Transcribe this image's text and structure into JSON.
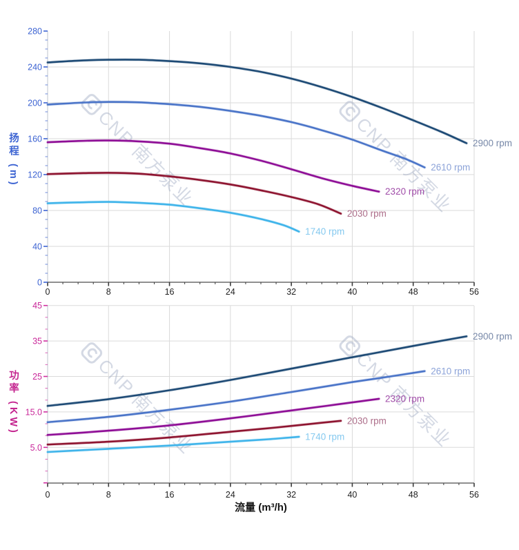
{
  "watermark": {
    "text": "CNP 南方泵业",
    "logo": "cnp-logo-icon"
  },
  "axes": {
    "flow_title": "流量 (m³/h)",
    "head_title": "扬程 (m)",
    "power_title": "功率 (KW)",
    "flow_tick_labels": [
      "0",
      "8",
      "16",
      "24",
      "32",
      "40",
      "48",
      "56"
    ],
    "head_tick_labels": [
      "0",
      "40",
      "80",
      "120",
      "160",
      "200",
      "240",
      "280"
    ],
    "power_tick_labels": [
      "5.0",
      "15.0",
      "25",
      "35",
      "45"
    ]
  },
  "colors": {
    "grid": "#dadada",
    "y_axis_line": "#c9cdd5",
    "x_axis_line": "#6a6a6a",
    "x_tick": "#3a3a3a",
    "x_tick_label": "#1f1f1f",
    "head_tick": "#3c63d2",
    "head_tick_label": "#3c63d2",
    "power_tick": "#d02fa0",
    "power_tick_label": "#c9289a",
    "watermark": "#9aa6bf"
  },
  "chart_data": [
    {
      "type": "line",
      "title": "",
      "xlabel": "流量 (m³/h)",
      "ylabel": "扬程 (m)",
      "xlim": [
        0,
        56
      ],
      "ylim": [
        0,
        280
      ],
      "x_major_step": 8,
      "x_minor_step": 2,
      "y_major_step": 40,
      "y_minor_step": 10,
      "grid": true,
      "legend_position": "curve-end-labels",
      "series": [
        {
          "name": "2900 rpm",
          "color": "#1d4a75",
          "label_color": "#7788a8",
          "points": [
            [
              0,
              245
            ],
            [
              4,
              247
            ],
            [
              8,
              248
            ],
            [
              12,
              248
            ],
            [
              16,
              246.5
            ],
            [
              20,
              244
            ],
            [
              24,
              240
            ],
            [
              28,
              234.5
            ],
            [
              32,
              227
            ],
            [
              36,
              217.5
            ],
            [
              40,
              206.5
            ],
            [
              44,
              194
            ],
            [
              48,
              180.5
            ],
            [
              52,
              166.5
            ],
            [
              55,
              155
            ]
          ]
        },
        {
          "name": "2610 rpm",
          "color": "#4a74c8",
          "label_color": "#8ca3d8",
          "points": [
            [
              0,
              198
            ],
            [
              4,
              200
            ],
            [
              8,
              201
            ],
            [
              12,
              200.5
            ],
            [
              16,
              198.5
            ],
            [
              20,
              195.5
            ],
            [
              24,
              191
            ],
            [
              28,
              185.5
            ],
            [
              32,
              178.5
            ],
            [
              36,
              169.5
            ],
            [
              40,
              159
            ],
            [
              44,
              146.5
            ],
            [
              47,
              137.5
            ],
            [
              49.5,
              128
            ]
          ]
        },
        {
          "name": "2320 rpm",
          "color": "#8e0e96",
          "label_color": "#a04ca8",
          "points": [
            [
              0,
              156
            ],
            [
              4,
              157.5
            ],
            [
              8,
              158
            ],
            [
              12,
              157
            ],
            [
              16,
              154.5
            ],
            [
              20,
              149.5
            ],
            [
              24,
              143.5
            ],
            [
              28,
              135.5
            ],
            [
              32,
              126
            ],
            [
              36,
              116
            ],
            [
              40,
              107.5
            ],
            [
              43.5,
              101
            ]
          ]
        },
        {
          "name": "2030 rpm",
          "color": "#8e1430",
          "label_color": "#ad6e8a",
          "points": [
            [
              0,
              120.5
            ],
            [
              4,
              121.5
            ],
            [
              8,
              122
            ],
            [
              12,
              121
            ],
            [
              16,
              118
            ],
            [
              20,
              114
            ],
            [
              24,
              109
            ],
            [
              28,
              102.5
            ],
            [
              32,
              95
            ],
            [
              35.5,
              87
            ],
            [
              38.5,
              76.5
            ]
          ]
        },
        {
          "name": "1740 rpm",
          "color": "#3fb4ea",
          "label_color": "#85c9ef",
          "points": [
            [
              0,
              88
            ],
            [
              4,
              89
            ],
            [
              8,
              89.5
            ],
            [
              12,
              88.5
            ],
            [
              16,
              86.5
            ],
            [
              20,
              82.5
            ],
            [
              24,
              77.5
            ],
            [
              28,
              70.5
            ],
            [
              31,
              63.5
            ],
            [
              33,
              56.5
            ]
          ]
        }
      ]
    },
    {
      "type": "line",
      "title": "",
      "xlabel": "流量 (m³/h)",
      "ylabel": "功率 (KW)",
      "xlim": [
        0,
        56
      ],
      "ylim": [
        -5,
        45
      ],
      "x_major_step": 8,
      "x_minor_step": 2,
      "y_major_step": 10,
      "y_minor_step": 3.3333,
      "grid": true,
      "legend_position": "curve-end-labels",
      "series": [
        {
          "name": "2900 rpm",
          "color": "#1d4a75",
          "label_color": "#7788a8",
          "points": [
            [
              0,
              16.7
            ],
            [
              8,
              18.6
            ],
            [
              16,
              21.1
            ],
            [
              24,
              24
            ],
            [
              32,
              27.2
            ],
            [
              40,
              30.4
            ],
            [
              48,
              33.6
            ],
            [
              55,
              36.3
            ]
          ]
        },
        {
          "name": "2610 rpm",
          "color": "#4a74c8",
          "label_color": "#8ca3d8",
          "points": [
            [
              0,
              12.1
            ],
            [
              8,
              13.6
            ],
            [
              16,
              15.6
            ],
            [
              24,
              17.9
            ],
            [
              32,
              20.6
            ],
            [
              40,
              23.4
            ],
            [
              45,
              25
            ],
            [
              49.5,
              26.5
            ]
          ]
        },
        {
          "name": "2320 rpm",
          "color": "#8e0e96",
          "label_color": "#a04ca8",
          "points": [
            [
              0,
              8.5
            ],
            [
              8,
              9.7
            ],
            [
              16,
              11.2
            ],
            [
              24,
              13.2
            ],
            [
              32,
              15.4
            ],
            [
              38,
              17.1
            ],
            [
              43.5,
              18.7
            ]
          ]
        },
        {
          "name": "2030 rpm",
          "color": "#8e1430",
          "label_color": "#ad6e8a",
          "points": [
            [
              0,
              5.8
            ],
            [
              8,
              6.6
            ],
            [
              16,
              7.8
            ],
            [
              24,
              9.4
            ],
            [
              30,
              10.6
            ],
            [
              34,
              11.5
            ],
            [
              38.5,
              12.5
            ]
          ]
        },
        {
          "name": "1740 rpm",
          "color": "#3fb4ea",
          "label_color": "#85c9ef",
          "points": [
            [
              0,
              3.7
            ],
            [
              8,
              4.6
            ],
            [
              16,
              5.5
            ],
            [
              24,
              6.6
            ],
            [
              29,
              7.3
            ],
            [
              33,
              8
            ]
          ]
        }
      ]
    }
  ]
}
